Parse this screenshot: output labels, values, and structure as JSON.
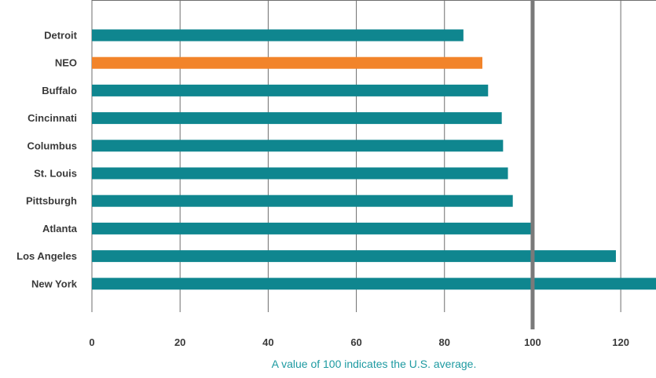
{
  "chart_data": {
    "type": "bar",
    "orientation": "horizontal",
    "categories": [
      "Detroit",
      "NEO",
      "Buffalo",
      "Cincinnati",
      "Columbus",
      "St. Louis",
      "Pittsburgh",
      "Atlanta",
      "Los Angeles",
      "New York"
    ],
    "values": [
      84.3,
      88.6,
      89.9,
      93.0,
      93.3,
      94.4,
      95.5,
      99.6,
      118.9,
      128.0
    ],
    "highlight_category": "NEO",
    "xlim": [
      0,
      128
    ],
    "x_ticks": [
      "0",
      "20",
      "40",
      "60",
      "80",
      "100",
      "120"
    ],
    "reference_line": 100,
    "grid": true,
    "note": "A value of 100 indicates the U.S. average.",
    "colors": {
      "bar": "#0f868f",
      "highlight": "#f2842a",
      "grid": "#6e6e6e",
      "reference": "#7a7a7a",
      "note": "#1d9aa1"
    }
  }
}
